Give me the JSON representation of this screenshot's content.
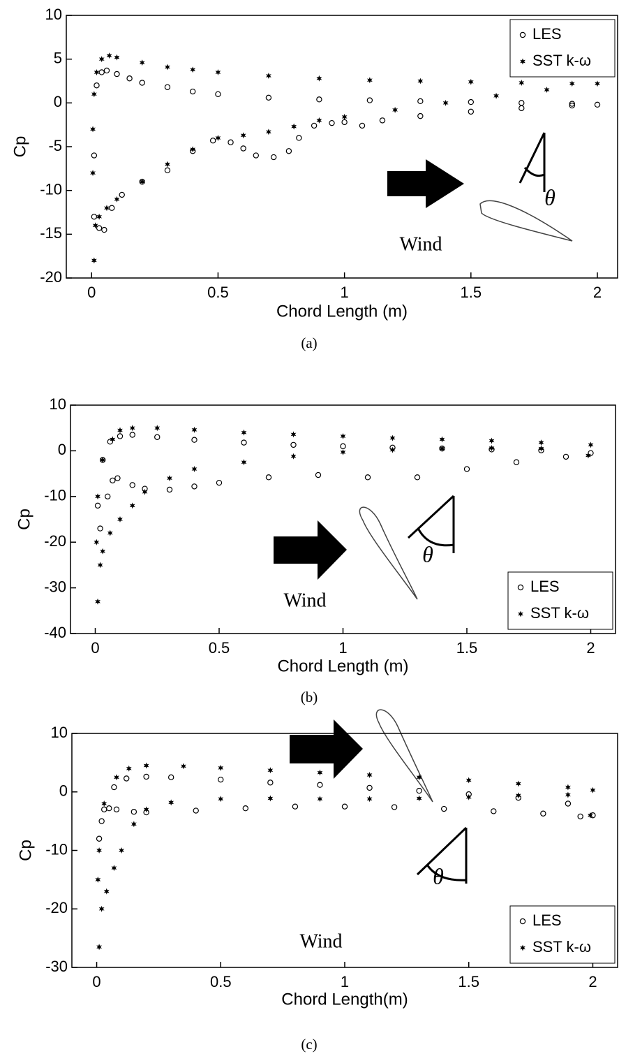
{
  "chart_data": [
    {
      "type": "scatter",
      "caption": "(a)",
      "x_label": "Chord Length (m)",
      "y_label": "Cp",
      "xlim": [
        -0.1,
        2.08
      ],
      "ylim": [
        -20,
        10
      ],
      "xticks": [
        0,
        0.5,
        1,
        1.5,
        2
      ],
      "yticks": [
        -20,
        -15,
        -10,
        -5,
        0,
        5,
        10
      ],
      "legend": "upper right",
      "annotations": [
        "Wind",
        "θ"
      ],
      "series": [
        {
          "name": "LES",
          "color": "#000000",
          "marker": "open-circle",
          "x": [
            0.01,
            0.02,
            0.04,
            0.06,
            0.1,
            0.15,
            0.2,
            0.3,
            0.4,
            0.5,
            0.7,
            0.9,
            1.1,
            1.3,
            1.5,
            1.7,
            1.9,
            2.0,
            0.01,
            0.03,
            0.05,
            0.08,
            0.12,
            0.2,
            0.3,
            0.4,
            0.48,
            0.55,
            0.6,
            0.65,
            0.72,
            0.78,
            0.82,
            0.88,
            0.95,
            1.0,
            1.07,
            1.15,
            1.3,
            1.5,
            1.7,
            1.9
          ],
          "values": [
            -6,
            2,
            3.5,
            3.7,
            3.3,
            2.8,
            2.3,
            1.8,
            1.3,
            1,
            0.6,
            0.4,
            0.3,
            0.2,
            0.1,
            0,
            -0.1,
            -0.2,
            -13,
            -14.3,
            -14.5,
            -12,
            -10.5,
            -9,
            -7.7,
            -5.5,
            -4.3,
            -4.5,
            -5.2,
            -6,
            -6.2,
            -5.5,
            -4,
            -2.6,
            -2.3,
            -2.2,
            -2.6,
            -2,
            -1.5,
            -1,
            -0.6,
            -0.3
          ]
        },
        {
          "name": "SST k-ω",
          "color": "#000000",
          "marker": "star",
          "x": [
            0.005,
            0.01,
            0.02,
            0.04,
            0.07,
            0.1,
            0.2,
            0.3,
            0.4,
            0.5,
            0.7,
            0.9,
            1.1,
            1.3,
            1.5,
            1.7,
            1.9,
            2.0,
            0.005,
            0.01,
            0.015,
            0.03,
            0.06,
            0.1,
            0.2,
            0.3,
            0.4,
            0.5,
            0.6,
            0.7,
            0.8,
            0.9,
            1.0,
            1.2,
            1.4,
            1.6,
            1.8
          ],
          "values": [
            -3,
            1,
            3.5,
            5,
            5.4,
            5.2,
            4.6,
            4.1,
            3.8,
            3.5,
            3.1,
            2.8,
            2.6,
            2.5,
            2.4,
            2.3,
            2.2,
            2.2,
            -8,
            -18,
            -14,
            -13,
            -12,
            -11,
            -9,
            -7,
            -5.3,
            -4,
            -3.7,
            -3.3,
            -2.7,
            -2,
            -1.6,
            -0.8,
            0,
            0.8,
            1.5
          ]
        }
      ]
    },
    {
      "type": "scatter",
      "caption": "(b)",
      "x_label": "Chord Length (m)",
      "y_label": "Cp",
      "xlim": [
        -0.1,
        2.1
      ],
      "ylim": [
        -40,
        10
      ],
      "xticks": [
        0,
        0.5,
        1,
        1.5,
        2
      ],
      "yticks": [
        -40,
        -30,
        -20,
        -10,
        0,
        10
      ],
      "legend": "lower right",
      "annotations": [
        "Wind",
        "θ"
      ],
      "series": [
        {
          "name": "LES",
          "color": "#000000",
          "marker": "open-circle",
          "x": [
            0.01,
            0.03,
            0.06,
            0.1,
            0.15,
            0.25,
            0.4,
            0.6,
            0.8,
            1.0,
            1.2,
            1.4,
            1.6,
            1.8,
            2.0,
            0.02,
            0.05,
            0.07,
            0.09,
            0.15,
            0.2,
            0.3,
            0.4,
            0.5,
            0.7,
            0.9,
            1.1,
            1.3,
            1.5,
            1.7,
            1.9
          ],
          "values": [
            -12,
            -2,
            2,
            3.2,
            3.5,
            3,
            2.4,
            1.8,
            1.3,
            1,
            0.7,
            0.5,
            0.3,
            0.1,
            -0.5,
            -17,
            -10,
            -6.5,
            -6,
            -7.5,
            -8.3,
            -8.5,
            -7.8,
            -7,
            -5.8,
            -5.3,
            -5.8,
            -5.8,
            -4,
            -2.5,
            -1.3
          ]
        },
        {
          "name": "SST k-ω",
          "color": "#000000",
          "marker": "star",
          "x": [
            0.01,
            0.03,
            0.07,
            0.1,
            0.15,
            0.25,
            0.4,
            0.6,
            0.8,
            1.0,
            1.2,
            1.4,
            1.6,
            1.8,
            2.0,
            0.005,
            0.01,
            0.02,
            0.03,
            0.06,
            0.1,
            0.15,
            0.2,
            0.3,
            0.4,
            0.6,
            0.8,
            1.0,
            1.2,
            1.4,
            1.6,
            1.8,
            1.99
          ],
          "values": [
            -10,
            -2,
            2.5,
            4.5,
            5,
            5,
            4.6,
            4,
            3.6,
            3.2,
            2.8,
            2.5,
            2.2,
            1.8,
            1.3,
            -20,
            -33,
            -25,
            -22,
            -18,
            -15,
            -12,
            -9,
            -6,
            -4,
            -2.5,
            -1.2,
            -0.3,
            0.2,
            0.5,
            0.6,
            0.5,
            -1
          ]
        }
      ]
    },
    {
      "type": "scatter",
      "caption": "(c)",
      "x_label": "Chord Length(m)",
      "y_label": "Cp",
      "xlim": [
        -0.1,
        2.1
      ],
      "ylim": [
        -30,
        10
      ],
      "xticks": [
        0,
        0.5,
        1,
        1.5,
        2
      ],
      "yticks": [
        -30,
        -20,
        -10,
        0,
        10
      ],
      "legend": "lower right",
      "annotations": [
        "Wind",
        "θ"
      ],
      "series": [
        {
          "name": "LES",
          "color": "#000000",
          "marker": "open-circle",
          "x": [
            0.01,
            0.03,
            0.07,
            0.12,
            0.2,
            0.3,
            0.5,
            0.7,
            0.9,
            1.1,
            1.3,
            1.5,
            1.7,
            1.9,
            2.0,
            0.02,
            0.05,
            0.08,
            0.15,
            0.2,
            0.4,
            0.6,
            0.8,
            1.0,
            1.2,
            1.4,
            1.6,
            1.8,
            1.95
          ],
          "values": [
            -8,
            -3,
            0.8,
            2.3,
            2.6,
            2.5,
            2.1,
            1.6,
            1.2,
            0.7,
            0.2,
            -0.4,
            -1,
            -2,
            -4,
            -5,
            -2.8,
            -3,
            -3.4,
            -3.5,
            -3.2,
            -2.8,
            -2.5,
            -2.5,
            -2.6,
            -2.9,
            -3.3,
            -3.7,
            -4.2
          ]
        },
        {
          "name": "SST k-ω",
          "color": "#000000",
          "marker": "star",
          "x": [
            0.01,
            0.03,
            0.08,
            0.13,
            0.2,
            0.35,
            0.5,
            0.7,
            0.9,
            1.1,
            1.3,
            1.5,
            1.7,
            1.9,
            2.0,
            0.005,
            0.01,
            0.02,
            0.04,
            0.07,
            0.1,
            0.15,
            0.2,
            0.3,
            0.5,
            0.7,
            0.9,
            1.1,
            1.3,
            1.5,
            1.7,
            1.9,
            1.99
          ],
          "values": [
            -10,
            -2,
            2.5,
            4,
            4.5,
            4.4,
            4.1,
            3.7,
            3.3,
            2.9,
            2.5,
            2,
            1.4,
            0.8,
            0.3,
            -15,
            -26.5,
            -20,
            -17,
            -13,
            -10,
            -5.5,
            -3,
            -1.8,
            -1.2,
            -1.1,
            -1.2,
            -1.2,
            -1.1,
            -0.9,
            -0.6,
            -0.5,
            -4
          ]
        }
      ]
    }
  ]
}
